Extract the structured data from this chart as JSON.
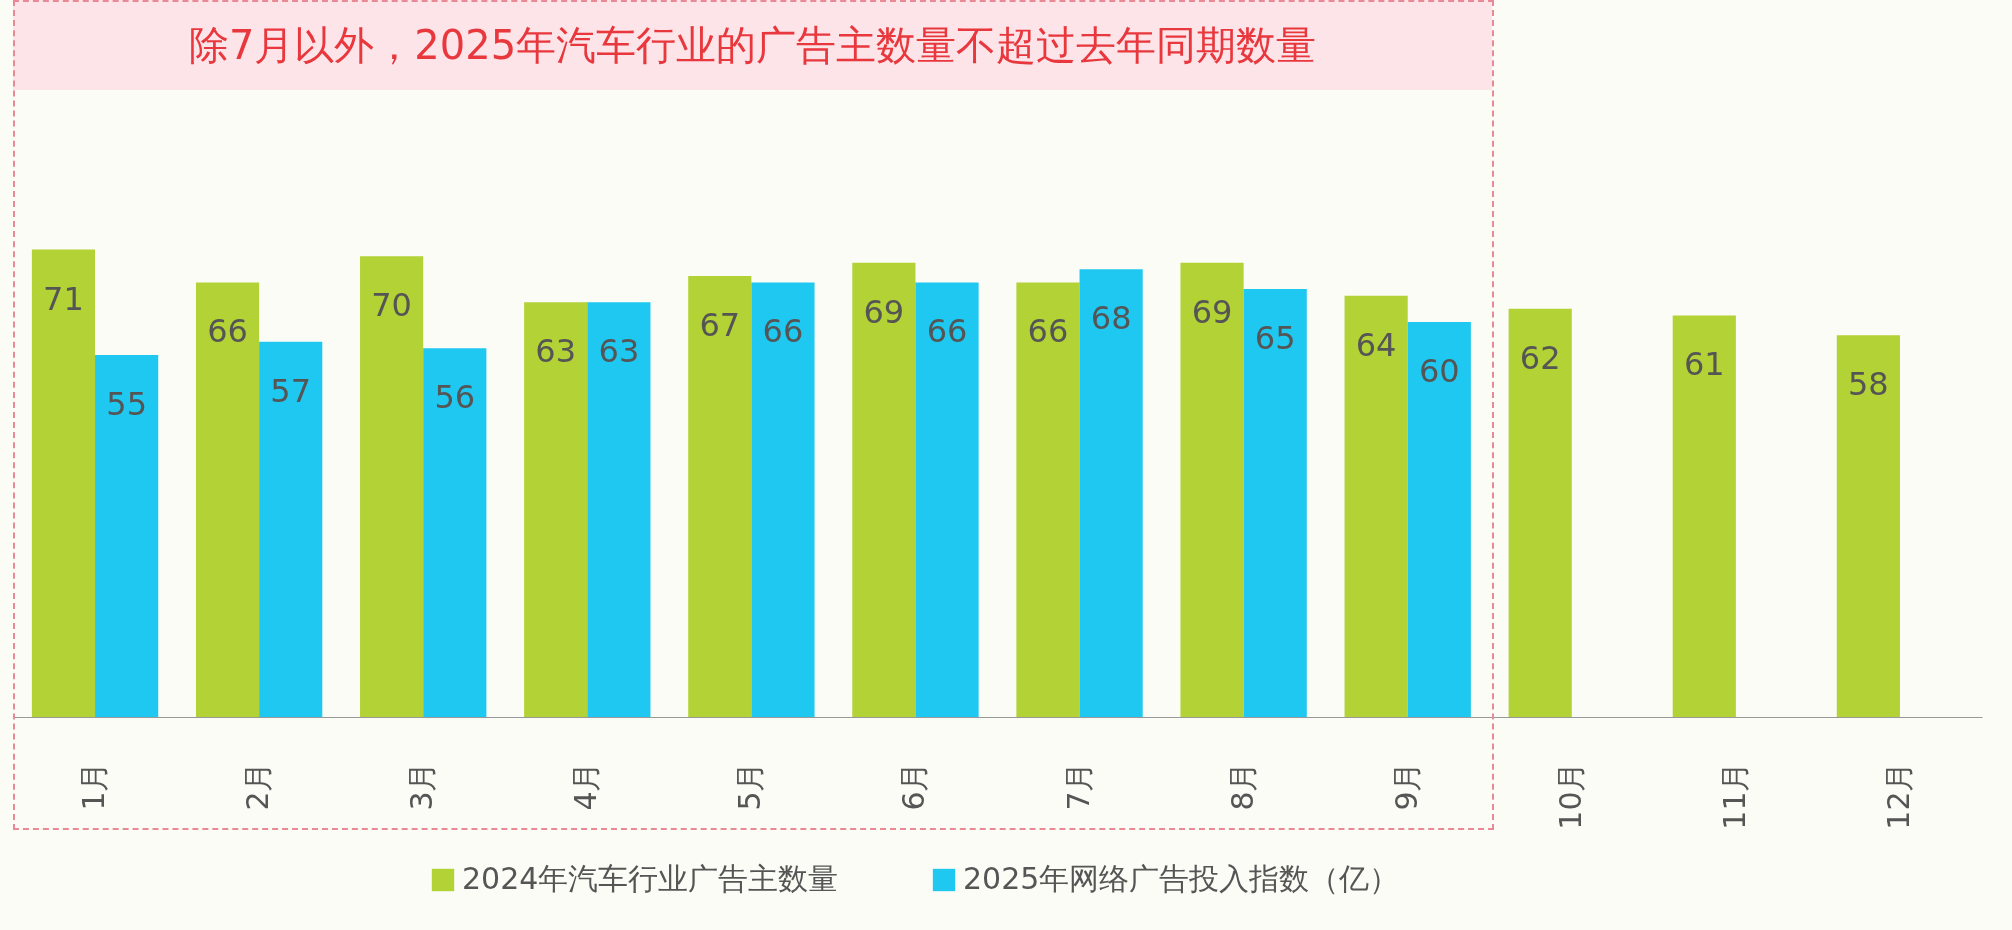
{
  "chart_data": {
    "type": "bar",
    "title": "除7月以外，2025年汽车行业的广告主数量不超过去年同期数量",
    "categories": [
      "1月",
      "2月",
      "3月",
      "4月",
      "5月",
      "6月",
      "7月",
      "8月",
      "9月",
      "10月",
      "11月",
      "12月"
    ],
    "series": [
      {
        "name": "2024年汽车行业广告主数量",
        "color": "#b2d235",
        "values": [
          71,
          66,
          70,
          63,
          67,
          69,
          66,
          69,
          64,
          62,
          61,
          58
        ]
      },
      {
        "name": "2025年网络广告投入指数（亿）",
        "color": "#1fc8f1",
        "values": [
          55,
          57,
          56,
          63,
          66,
          66,
          68,
          65,
          60,
          null,
          null,
          null
        ]
      }
    ],
    "data_labels": true,
    "legend": "bottom",
    "grid": false
  }
}
